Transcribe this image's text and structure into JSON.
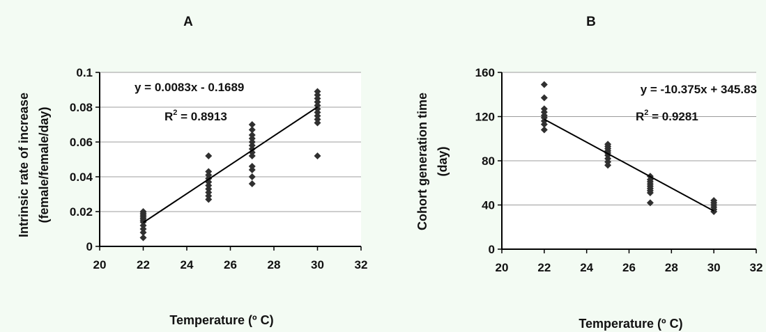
{
  "chart_data": [
    {
      "panel": "A",
      "type": "scatter",
      "title": "A",
      "xlabel": "Temperature (º C)",
      "ylabel_line1": "Intrinsic rate of increase",
      "ylabel_line2": "(female/female/day)",
      "xlim": [
        20,
        32
      ],
      "ylim": [
        0,
        0.1
      ],
      "xticks": [
        "20",
        "22",
        "24",
        "26",
        "28",
        "30",
        "32"
      ],
      "yticks": [
        "0",
        "0.02",
        "0.04",
        "0.06",
        "0.08",
        "0.1"
      ],
      "grid": "horizontal",
      "equation": "y = 0.0083x - 0.1689",
      "r2_prefix": "R",
      "r2_sup": "2",
      "r2_value": " = 0.8913",
      "trendline": {
        "slope": 0.0083,
        "intercept": -0.1689,
        "x_from": 22,
        "x_to": 30
      },
      "points": [
        {
          "x": 22,
          "y": 0.005
        },
        {
          "x": 22,
          "y": 0.008
        },
        {
          "x": 22,
          "y": 0.01
        },
        {
          "x": 22,
          "y": 0.012
        },
        {
          "x": 22,
          "y": 0.014
        },
        {
          "x": 22,
          "y": 0.015
        },
        {
          "x": 22,
          "y": 0.016
        },
        {
          "x": 22,
          "y": 0.017
        },
        {
          "x": 22,
          "y": 0.018
        },
        {
          "x": 22,
          "y": 0.019
        },
        {
          "x": 22,
          "y": 0.02
        },
        {
          "x": 25,
          "y": 0.027
        },
        {
          "x": 25,
          "y": 0.029
        },
        {
          "x": 25,
          "y": 0.031
        },
        {
          "x": 25,
          "y": 0.033
        },
        {
          "x": 25,
          "y": 0.035
        },
        {
          "x": 25,
          "y": 0.037
        },
        {
          "x": 25,
          "y": 0.039
        },
        {
          "x": 25,
          "y": 0.041
        },
        {
          "x": 25,
          "y": 0.043
        },
        {
          "x": 25,
          "y": 0.052
        },
        {
          "x": 27,
          "y": 0.036
        },
        {
          "x": 27,
          "y": 0.04
        },
        {
          "x": 27,
          "y": 0.044
        },
        {
          "x": 27,
          "y": 0.046
        },
        {
          "x": 27,
          "y": 0.052
        },
        {
          "x": 27,
          "y": 0.054
        },
        {
          "x": 27,
          "y": 0.056
        },
        {
          "x": 27,
          "y": 0.058
        },
        {
          "x": 27,
          "y": 0.06
        },
        {
          "x": 27,
          "y": 0.062
        },
        {
          "x": 27,
          "y": 0.064
        },
        {
          "x": 27,
          "y": 0.067
        },
        {
          "x": 27,
          "y": 0.07
        },
        {
          "x": 30,
          "y": 0.052
        },
        {
          "x": 30,
          "y": 0.071
        },
        {
          "x": 30,
          "y": 0.073
        },
        {
          "x": 30,
          "y": 0.075
        },
        {
          "x": 30,
          "y": 0.077
        },
        {
          "x": 30,
          "y": 0.079
        },
        {
          "x": 30,
          "y": 0.081
        },
        {
          "x": 30,
          "y": 0.083
        },
        {
          "x": 30,
          "y": 0.085
        },
        {
          "x": 30,
          "y": 0.087
        },
        {
          "x": 30,
          "y": 0.089
        }
      ]
    },
    {
      "panel": "B",
      "type": "scatter",
      "title": "B",
      "xlabel": "Temperature (º C)",
      "ylabel_line1": "Cohort generation time",
      "ylabel_line2": "(day)",
      "xlim": [
        20,
        32
      ],
      "ylim": [
        0,
        160
      ],
      "xticks": [
        "20",
        "22",
        "24",
        "26",
        "28",
        "30",
        "32"
      ],
      "yticks": [
        "0",
        "40",
        "80",
        "120",
        "160"
      ],
      "grid": "horizontal",
      "equation": "y = -10.375x + 345.83",
      "r2_prefix": "R",
      "r2_sup": "2",
      "r2_value": " = 0.9281",
      "trendline": {
        "slope": -10.375,
        "intercept": 345.83,
        "x_from": 22,
        "x_to": 30
      },
      "points": [
        {
          "x": 22,
          "y": 108
        },
        {
          "x": 22,
          "y": 113
        },
        {
          "x": 22,
          "y": 116
        },
        {
          "x": 22,
          "y": 119
        },
        {
          "x": 22,
          "y": 121
        },
        {
          "x": 22,
          "y": 124
        },
        {
          "x": 22,
          "y": 127
        },
        {
          "x": 22,
          "y": 137
        },
        {
          "x": 22,
          "y": 149
        },
        {
          "x": 25,
          "y": 76
        },
        {
          "x": 25,
          "y": 79
        },
        {
          "x": 25,
          "y": 82
        },
        {
          "x": 25,
          "y": 85
        },
        {
          "x": 25,
          "y": 87
        },
        {
          "x": 25,
          "y": 89
        },
        {
          "x": 25,
          "y": 91
        },
        {
          "x": 25,
          "y": 93
        },
        {
          "x": 25,
          "y": 95
        },
        {
          "x": 27,
          "y": 42
        },
        {
          "x": 27,
          "y": 51
        },
        {
          "x": 27,
          "y": 53
        },
        {
          "x": 27,
          "y": 55
        },
        {
          "x": 27,
          "y": 57
        },
        {
          "x": 27,
          "y": 59
        },
        {
          "x": 27,
          "y": 61
        },
        {
          "x": 27,
          "y": 63
        },
        {
          "x": 27,
          "y": 66
        },
        {
          "x": 30,
          "y": 34
        },
        {
          "x": 30,
          "y": 36
        },
        {
          "x": 30,
          "y": 38
        },
        {
          "x": 30,
          "y": 40
        },
        {
          "x": 30,
          "y": 42
        },
        {
          "x": 30,
          "y": 44
        }
      ]
    }
  ]
}
